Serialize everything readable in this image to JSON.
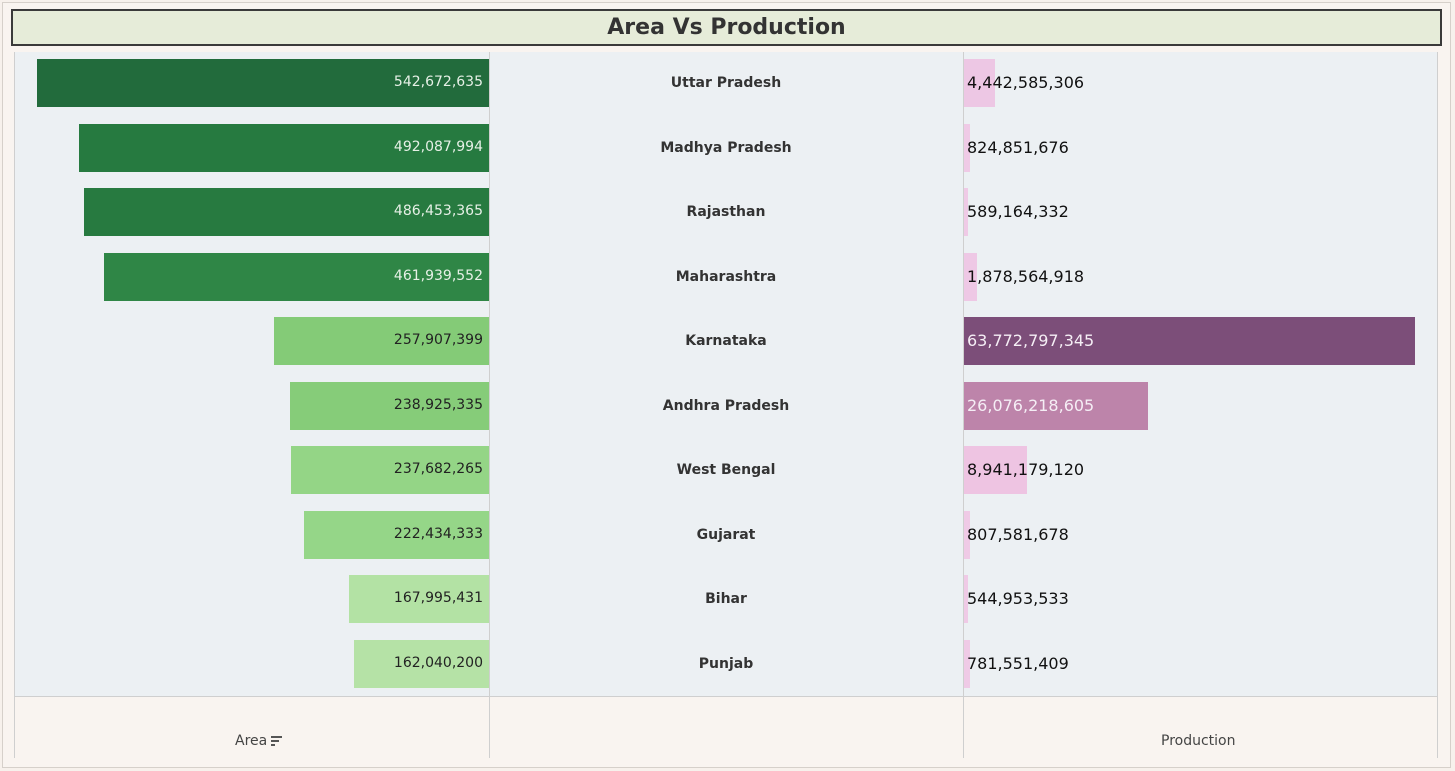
{
  "title": "Area Vs Production",
  "chart_data": {
    "type": "bar",
    "title": "Area Vs Production",
    "categories": [
      "Uttar Pradesh",
      "Madhya Pradesh",
      "Rajasthan",
      "Maharashtra",
      "Karnataka",
      "Andhra Pradesh",
      "West Bengal",
      "Gujarat",
      "Bihar",
      "Punjab"
    ],
    "series": [
      {
        "name": "Area",
        "values": [
          542672635,
          492087994,
          486453365,
          461939552,
          257907399,
          238925335,
          237682265,
          222434333,
          167995431,
          162040200
        ],
        "labels": [
          "542,672,635",
          "492,087,994",
          "486,453,365",
          "461,939,552",
          "257,907,399",
          "238,925,335",
          "237,682,265",
          "222,434,333",
          "167,995,431",
          "162,040,200"
        ],
        "colors": [
          "#226b3c",
          "#267a40",
          "#277a40",
          "#2f8646",
          "#84cb77",
          "#86cc79",
          "#94d586",
          "#95d688",
          "#b3e2a4",
          "#b5e2a6"
        ],
        "label_colors": [
          "#e6f0e6",
          "#e6f0e6",
          "#e6f0e6",
          "#e6f0e6",
          "#222222",
          "#222222",
          "#222222",
          "#222222",
          "#222222",
          "#222222"
        ]
      },
      {
        "name": "Production",
        "values": [
          4442585306,
          824851676,
          589164332,
          1878564918,
          63772797345,
          26076218605,
          8941179120,
          807581678,
          544953533,
          781551409
        ],
        "labels": [
          "4,442,585,306",
          "824,851,676",
          "589,164,332",
          "1,878,564,918",
          "63,772,797,345",
          "26,076,218,605",
          "8,941,179,120",
          "807,581,678",
          "544,953,533",
          "781,551,409"
        ],
        "colors": [
          "#edc7e4",
          "#efcae6",
          "#efcae6",
          "#eec8e5",
          "#7c4e79",
          "#bd84aa",
          "#eec4e2",
          "#efcae6",
          "#efcae6",
          "#efcae6"
        ],
        "label_colors": [
          "#111111",
          "#111111",
          "#111111",
          "#111111",
          "#f5eef5",
          "#f5eef5",
          "#111111",
          "#111111",
          "#111111",
          "#111111"
        ]
      }
    ],
    "xlabel_left": "Area",
    "xlabel_right": "Production",
    "sort_icon": "sort-descending-icon"
  }
}
